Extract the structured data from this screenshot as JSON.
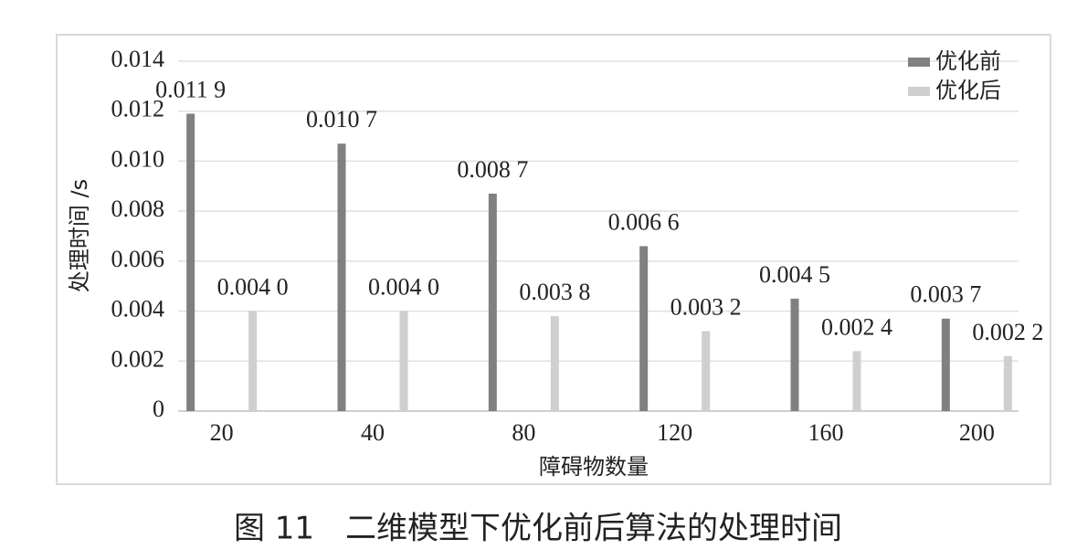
{
  "chart_data": {
    "type": "bar",
    "title": "图 11　二维模型下优化前后算法的处理时间",
    "x_label": "障碍物数量",
    "y_label": "处理时间 /s",
    "categories": [
      "20",
      "40",
      "80",
      "120",
      "160",
      "200"
    ],
    "series": [
      {
        "name": "优化前",
        "color": "#808080",
        "values": [
          0.0119,
          0.0107,
          0.0087,
          0.0066,
          0.0045,
          0.0037
        ],
        "value_labels": [
          "0.011 9",
          "0.010 7",
          "0.008 7",
          "0.006 6",
          "0.004 5",
          "0.003 7"
        ]
      },
      {
        "name": "优化后",
        "color": "#cfcfcf",
        "values": [
          0.004,
          0.004,
          0.0038,
          0.0032,
          0.0024,
          0.0022
        ],
        "value_labels": [
          "0.004 0",
          "0.004 0",
          "0.003 8",
          "0.003 2",
          "0.002 4",
          "0.002 2"
        ]
      }
    ],
    "ylim": [
      0,
      0.014
    ],
    "yticks": [
      0,
      0.002,
      0.004,
      0.006,
      0.008,
      {
        "value": 0.01,
        "label": "0.010"
      },
      0.012,
      0.014
    ],
    "grid": true,
    "legend": "top-right"
  }
}
